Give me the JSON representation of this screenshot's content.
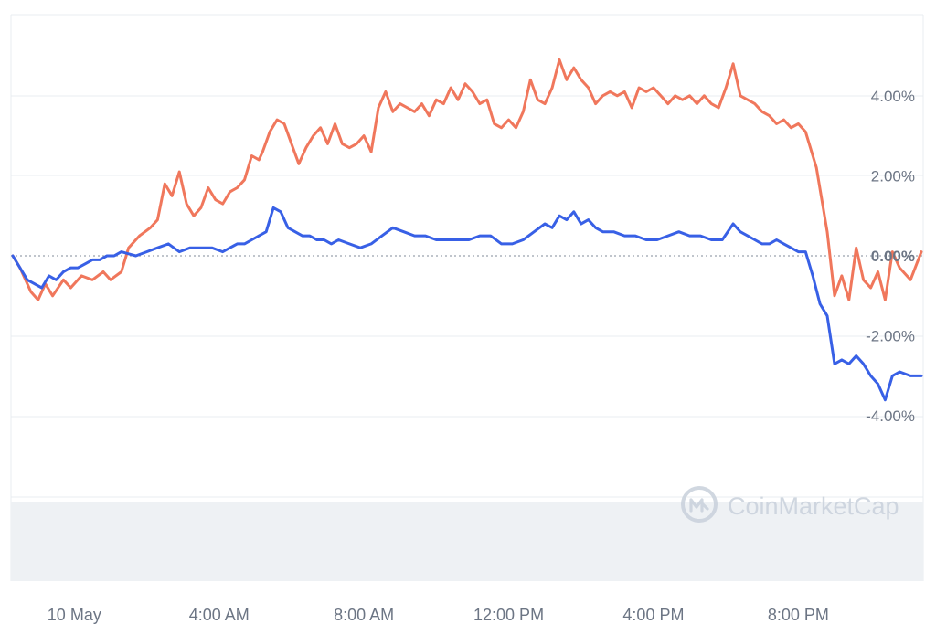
{
  "watermark": {
    "text": "CoinMarketCap",
    "logo": "coinmarketcap-logo-icon"
  },
  "colors": {
    "series_a": "#f0775c",
    "series_b": "#3860e6",
    "grid": "#e9ecf0",
    "volume": "#eef1f4",
    "zero_line": "#9aa2ae"
  },
  "chart_data": {
    "type": "line",
    "x_unit": "hours from 00:00 10 May",
    "xlim": [
      -1.7,
      23.4
    ],
    "ylim": [
      -6,
      6
    ],
    "y_ticks": [
      {
        "value": 4,
        "label": "4.00%"
      },
      {
        "value": 2,
        "label": "2.00%"
      },
      {
        "value": 0,
        "label": "0.00%"
      },
      {
        "value": -2,
        "label": "-2.00%"
      },
      {
        "value": -4,
        "label": "-4.00%"
      }
    ],
    "x_ticks": [
      {
        "value": 0,
        "label": "10 May"
      },
      {
        "value": 4,
        "label": "4:00 AM"
      },
      {
        "value": 8,
        "label": "8:00 AM"
      },
      {
        "value": 12,
        "label": "12:00 PM"
      },
      {
        "value": 16,
        "label": "4:00 PM"
      },
      {
        "value": 20,
        "label": "8:00 PM"
      }
    ],
    "grid": true,
    "legend": "none",
    "series": [
      {
        "color": "#f0775c",
        "points": [
          [
            -1.7,
            0
          ],
          [
            -1.5,
            -0.3
          ],
          [
            -1.2,
            -0.9
          ],
          [
            -1.0,
            -1.1
          ],
          [
            -0.8,
            -0.7
          ],
          [
            -0.6,
            -1.0
          ],
          [
            -0.3,
            -0.6
          ],
          [
            -0.1,
            -0.8
          ],
          [
            0.2,
            -0.5
          ],
          [
            0.5,
            -0.6
          ],
          [
            0.8,
            -0.4
          ],
          [
            1.0,
            -0.6
          ],
          [
            1.3,
            -0.4
          ],
          [
            1.5,
            0.2
          ],
          [
            1.8,
            0.5
          ],
          [
            2.1,
            0.7
          ],
          [
            2.3,
            0.9
          ],
          [
            2.5,
            1.8
          ],
          [
            2.7,
            1.5
          ],
          [
            2.9,
            2.1
          ],
          [
            3.1,
            1.3
          ],
          [
            3.3,
            1.0
          ],
          [
            3.5,
            1.2
          ],
          [
            3.7,
            1.7
          ],
          [
            3.9,
            1.4
          ],
          [
            4.1,
            1.3
          ],
          [
            4.3,
            1.6
          ],
          [
            4.5,
            1.7
          ],
          [
            4.7,
            1.9
          ],
          [
            4.9,
            2.5
          ],
          [
            5.1,
            2.4
          ],
          [
            5.2,
            2.6
          ],
          [
            5.4,
            3.1
          ],
          [
            5.6,
            3.4
          ],
          [
            5.8,
            3.3
          ],
          [
            6.0,
            2.8
          ],
          [
            6.2,
            2.3
          ],
          [
            6.4,
            2.7
          ],
          [
            6.6,
            3.0
          ],
          [
            6.8,
            3.2
          ],
          [
            7.0,
            2.8
          ],
          [
            7.2,
            3.3
          ],
          [
            7.4,
            2.8
          ],
          [
            7.6,
            2.7
          ],
          [
            7.8,
            2.8
          ],
          [
            8.0,
            3.0
          ],
          [
            8.2,
            2.6
          ],
          [
            8.4,
            3.7
          ],
          [
            8.6,
            4.1
          ],
          [
            8.8,
            3.6
          ],
          [
            9.0,
            3.8
          ],
          [
            9.2,
            3.7
          ],
          [
            9.4,
            3.6
          ],
          [
            9.6,
            3.8
          ],
          [
            9.8,
            3.5
          ],
          [
            10.0,
            3.9
          ],
          [
            10.2,
            3.8
          ],
          [
            10.4,
            4.2
          ],
          [
            10.6,
            3.9
          ],
          [
            10.8,
            4.3
          ],
          [
            11.0,
            4.1
          ],
          [
            11.2,
            3.8
          ],
          [
            11.4,
            3.9
          ],
          [
            11.6,
            3.3
          ],
          [
            11.8,
            3.2
          ],
          [
            12.0,
            3.4
          ],
          [
            12.2,
            3.2
          ],
          [
            12.4,
            3.6
          ],
          [
            12.6,
            4.4
          ],
          [
            12.8,
            3.9
          ],
          [
            13.0,
            3.8
          ],
          [
            13.2,
            4.2
          ],
          [
            13.4,
            4.9
          ],
          [
            13.6,
            4.4
          ],
          [
            13.8,
            4.7
          ],
          [
            14.0,
            4.4
          ],
          [
            14.2,
            4.2
          ],
          [
            14.4,
            3.8
          ],
          [
            14.6,
            4.0
          ],
          [
            14.8,
            4.1
          ],
          [
            15.0,
            4.0
          ],
          [
            15.2,
            4.1
          ],
          [
            15.4,
            3.7
          ],
          [
            15.6,
            4.2
          ],
          [
            15.8,
            4.1
          ],
          [
            16.0,
            4.2
          ],
          [
            16.2,
            4.0
          ],
          [
            16.4,
            3.8
          ],
          [
            16.6,
            4.0
          ],
          [
            16.8,
            3.9
          ],
          [
            17.0,
            4.0
          ],
          [
            17.2,
            3.8
          ],
          [
            17.4,
            4.0
          ],
          [
            17.6,
            3.8
          ],
          [
            17.8,
            3.7
          ],
          [
            18.0,
            4.2
          ],
          [
            18.2,
            4.8
          ],
          [
            18.4,
            4.0
          ],
          [
            18.6,
            3.9
          ],
          [
            18.8,
            3.8
          ],
          [
            19.0,
            3.6
          ],
          [
            19.2,
            3.5
          ],
          [
            19.4,
            3.3
          ],
          [
            19.6,
            3.4
          ],
          [
            19.8,
            3.2
          ],
          [
            20.0,
            3.3
          ],
          [
            20.2,
            3.1
          ],
          [
            20.5,
            2.2
          ],
          [
            20.8,
            0.6
          ],
          [
            21.0,
            -1.0
          ],
          [
            21.2,
            -0.5
          ],
          [
            21.4,
            -1.1
          ],
          [
            21.6,
            0.2
          ],
          [
            21.8,
            -0.6
          ],
          [
            22.0,
            -0.8
          ],
          [
            22.2,
            -0.4
          ],
          [
            22.4,
            -1.1
          ],
          [
            22.6,
            0.1
          ],
          [
            22.8,
            -0.3
          ],
          [
            23.1,
            -0.6
          ],
          [
            23.4,
            0.1
          ]
        ]
      },
      {
        "color": "#3860e6",
        "points": [
          [
            -1.7,
            0
          ],
          [
            -1.5,
            -0.3
          ],
          [
            -1.3,
            -0.6
          ],
          [
            -1.1,
            -0.7
          ],
          [
            -0.9,
            -0.8
          ],
          [
            -0.7,
            -0.5
          ],
          [
            -0.5,
            -0.6
          ],
          [
            -0.3,
            -0.4
          ],
          [
            -0.1,
            -0.3
          ],
          [
            0.1,
            -0.3
          ],
          [
            0.3,
            -0.2
          ],
          [
            0.5,
            -0.1
          ],
          [
            0.7,
            -0.1
          ],
          [
            0.9,
            0.0
          ],
          [
            1.1,
            0.0
          ],
          [
            1.3,
            0.1
          ],
          [
            1.5,
            0.05
          ],
          [
            1.7,
            0.0
          ],
          [
            2.0,
            0.1
          ],
          [
            2.3,
            0.2
          ],
          [
            2.6,
            0.3
          ],
          [
            2.9,
            0.1
          ],
          [
            3.2,
            0.2
          ],
          [
            3.5,
            0.2
          ],
          [
            3.8,
            0.2
          ],
          [
            4.1,
            0.1
          ],
          [
            4.3,
            0.2
          ],
          [
            4.5,
            0.3
          ],
          [
            4.7,
            0.3
          ],
          [
            4.9,
            0.4
          ],
          [
            5.1,
            0.5
          ],
          [
            5.3,
            0.6
          ],
          [
            5.5,
            1.2
          ],
          [
            5.7,
            1.1
          ],
          [
            5.9,
            0.7
          ],
          [
            6.1,
            0.6
          ],
          [
            6.3,
            0.5
          ],
          [
            6.5,
            0.5
          ],
          [
            6.7,
            0.4
          ],
          [
            6.9,
            0.4
          ],
          [
            7.1,
            0.3
          ],
          [
            7.3,
            0.4
          ],
          [
            7.6,
            0.3
          ],
          [
            7.9,
            0.2
          ],
          [
            8.2,
            0.3
          ],
          [
            8.5,
            0.5
          ],
          [
            8.8,
            0.7
          ],
          [
            9.1,
            0.6
          ],
          [
            9.4,
            0.5
          ],
          [
            9.7,
            0.5
          ],
          [
            10.0,
            0.4
          ],
          [
            10.3,
            0.4
          ],
          [
            10.6,
            0.4
          ],
          [
            10.9,
            0.4
          ],
          [
            11.2,
            0.5
          ],
          [
            11.5,
            0.5
          ],
          [
            11.8,
            0.3
          ],
          [
            12.1,
            0.3
          ],
          [
            12.4,
            0.4
          ],
          [
            12.7,
            0.6
          ],
          [
            13.0,
            0.8
          ],
          [
            13.2,
            0.7
          ],
          [
            13.4,
            1.0
          ],
          [
            13.6,
            0.9
          ],
          [
            13.8,
            1.1
          ],
          [
            14.0,
            0.8
          ],
          [
            14.2,
            0.9
          ],
          [
            14.4,
            0.7
          ],
          [
            14.6,
            0.6
          ],
          [
            14.9,
            0.6
          ],
          [
            15.2,
            0.5
          ],
          [
            15.5,
            0.5
          ],
          [
            15.8,
            0.4
          ],
          [
            16.1,
            0.4
          ],
          [
            16.4,
            0.5
          ],
          [
            16.7,
            0.6
          ],
          [
            17.0,
            0.5
          ],
          [
            17.3,
            0.5
          ],
          [
            17.6,
            0.4
          ],
          [
            17.9,
            0.4
          ],
          [
            18.2,
            0.8
          ],
          [
            18.4,
            0.6
          ],
          [
            18.6,
            0.5
          ],
          [
            18.8,
            0.4
          ],
          [
            19.0,
            0.3
          ],
          [
            19.2,
            0.3
          ],
          [
            19.4,
            0.4
          ],
          [
            19.6,
            0.3
          ],
          [
            19.8,
            0.2
          ],
          [
            20.0,
            0.1
          ],
          [
            20.2,
            0.1
          ],
          [
            20.4,
            -0.5
          ],
          [
            20.6,
            -1.2
          ],
          [
            20.8,
            -1.5
          ],
          [
            21.0,
            -2.7
          ],
          [
            21.2,
            -2.6
          ],
          [
            21.4,
            -2.7
          ],
          [
            21.6,
            -2.5
          ],
          [
            21.8,
            -2.7
          ],
          [
            22.0,
            -3.0
          ],
          [
            22.2,
            -3.2
          ],
          [
            22.4,
            -3.6
          ],
          [
            22.6,
            -3.0
          ],
          [
            22.8,
            -2.9
          ],
          [
            23.1,
            -3.0
          ],
          [
            23.4,
            -3.0
          ]
        ]
      }
    ]
  }
}
